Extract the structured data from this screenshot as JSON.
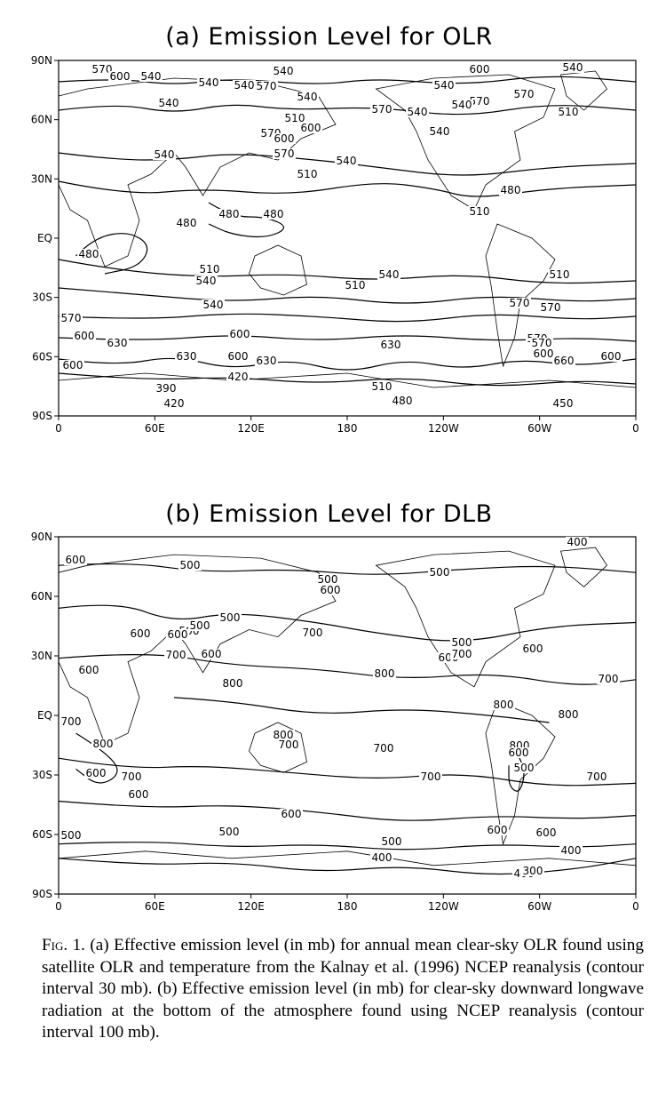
{
  "figure": {
    "panels": [
      {
        "title": "(a) Emission Level for OLR",
        "lat_ticks": [
          "90N",
          "60N",
          "30N",
          "EQ",
          "30S",
          "60S",
          "90S"
        ],
        "lon_ticks": [
          "0",
          "60E",
          "120E",
          "180",
          "120W",
          "60W",
          "0"
        ],
        "contour_labels": [
          "570",
          "600",
          "540",
          "540",
          "540",
          "540",
          "540",
          "570",
          "540",
          "570",
          "510",
          "570",
          "600",
          "600",
          "570",
          "540",
          "540",
          "600",
          "540",
          "570",
          "570",
          "540",
          "540",
          "510",
          "540",
          "540",
          "510",
          "480",
          "510",
          "480",
          "480",
          "480",
          "480",
          "510",
          "540",
          "510",
          "540",
          "510",
          "570",
          "570",
          "540",
          "570",
          "600",
          "600",
          "630",
          "630",
          "600",
          "630",
          "570",
          "600",
          "600",
          "630",
          "660",
          "600",
          "570",
          "420",
          "510",
          "390",
          "420",
          "480",
          "450"
        ]
      },
      {
        "title": "(b) Emission Level for DLB",
        "lat_ticks": [
          "90N",
          "60N",
          "30N",
          "EQ",
          "30S",
          "60S",
          "90S"
        ],
        "lon_ticks": [
          "0",
          "60E",
          "120E",
          "180",
          "120W",
          "60W",
          "0"
        ],
        "contour_labels": [
          "600",
          "500",
          "500",
          "400",
          "600",
          "500",
          "500",
          "500",
          "600",
          "600",
          "500",
          "700",
          "500",
          "600",
          "600",
          "700",
          "600",
          "600",
          "700",
          "800",
          "700",
          "800",
          "800",
          "700",
          "800",
          "800",
          "700",
          "800",
          "700",
          "800",
          "600",
          "600",
          "700",
          "700",
          "600",
          "700",
          "500",
          "600",
          "600",
          "500",
          "500",
          "500",
          "600",
          "400",
          "400",
          "400",
          "300"
        ]
      }
    ],
    "caption": {
      "label": "Fig. 1.",
      "text": "(a) Effective emission level (in mb) for annual mean clear-sky OLR found using satellite OLR and temperature from the Kalnay et al. (1996) NCEP reanalysis (contour interval 30 mb). (b) Effective emission level (in mb) for clear-sky downward longwave radiation at the bottom of the atmosphere found using NCEP reanalysis (contour interval 100 mb)."
    }
  }
}
